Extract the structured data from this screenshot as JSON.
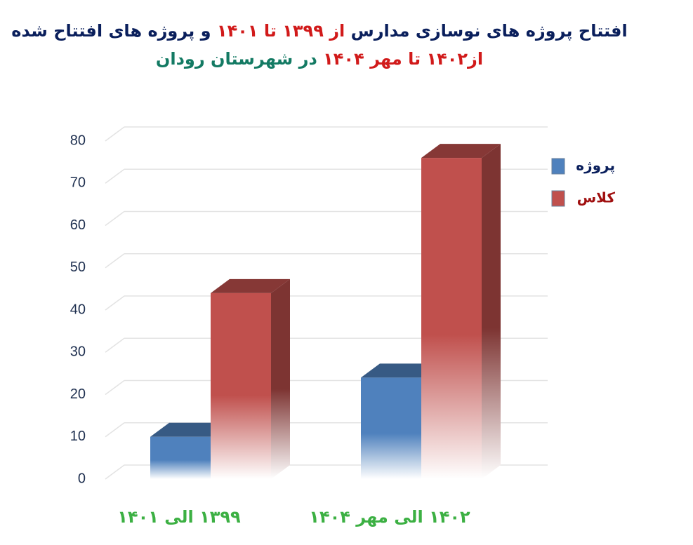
{
  "chart_data": {
    "type": "bar3d",
    "title_lines": [
      [
        {
          "text": "افتتاح پروژه های نوسازی مدارس",
          "color": "#0a1f5c"
        },
        {
          "text": "از ۱۳۹۹ تا ۱۴۰۱",
          "color": "#d11a1a"
        },
        {
          "text": "و پروژه های افتتاح شده",
          "color": "#0a1f5c"
        }
      ],
      [
        {
          "text": "از۱۴۰۲ تا مهر ۱۴۰۴",
          "color": "#d11a1a"
        },
        {
          "text": "در شهرستان رودان",
          "color": "#137a63"
        }
      ]
    ],
    "categories": [
      "۱۳۹۹ الی ۱۴۰۱",
      "۱۴۰۲ الی مهر ۱۴۰۴"
    ],
    "category_color": "#3cb043",
    "series": [
      {
        "name": "پروژه",
        "color": "#4f81bd",
        "label_color": "#0a1f5c",
        "values": [
          10,
          24
        ]
      },
      {
        "name": "کلاس",
        "color": "#c0504d",
        "label_color": "#a01010",
        "values": [
          44,
          76
        ]
      }
    ],
    "ylim": [
      0,
      80
    ],
    "yticks": [
      0,
      10,
      20,
      30,
      40,
      50,
      60,
      70,
      80
    ],
    "grid": true,
    "legend": "right"
  }
}
